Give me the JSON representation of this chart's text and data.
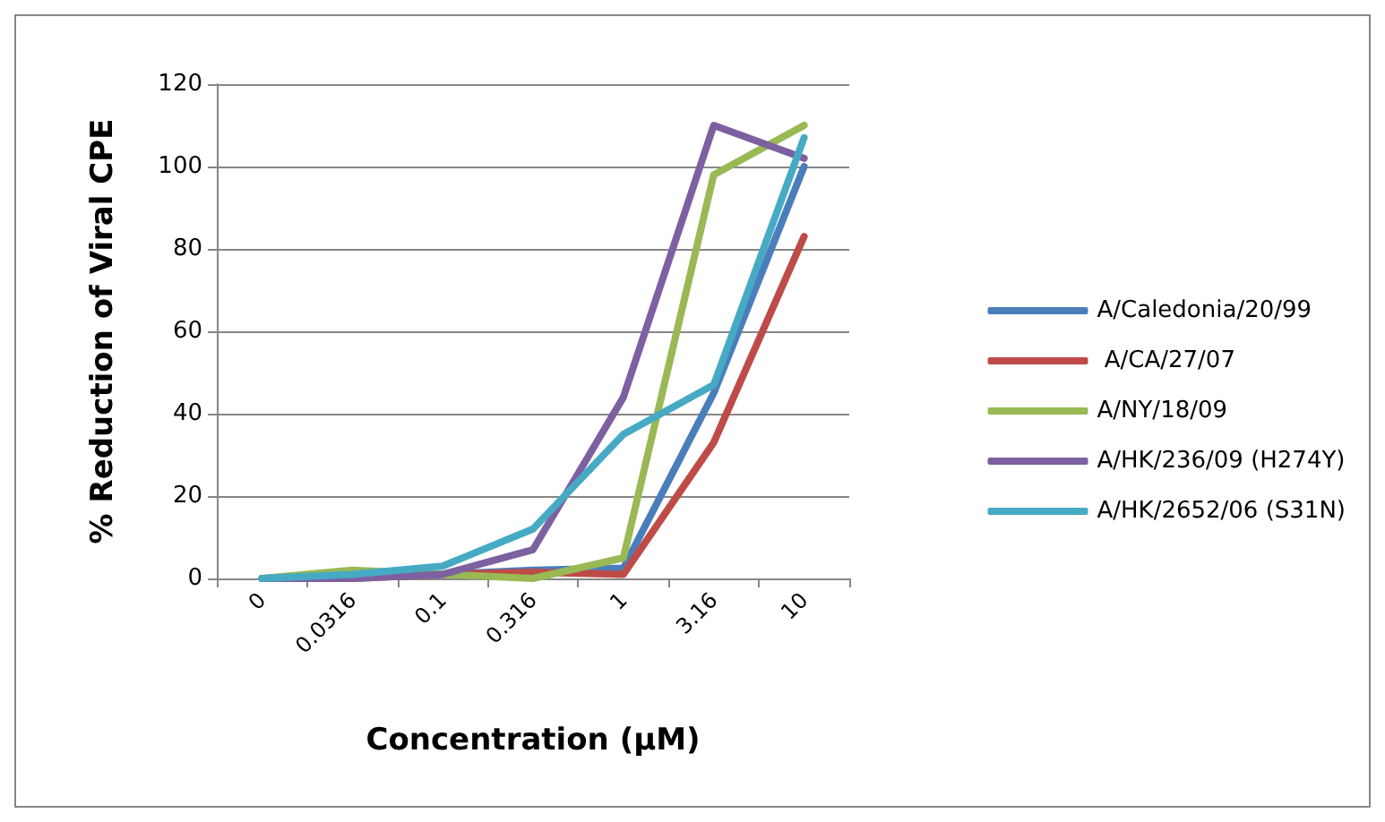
{
  "chart_data": {
    "type": "line",
    "xlabel": "Concentration (µM)",
    "ylabel": "% Reduction of Viral CPE",
    "categories": [
      "0",
      "0.0316",
      "0.1",
      "0.316",
      "1",
      "3.16",
      "10"
    ],
    "ylim": [
      0,
      120
    ],
    "yticks": [
      0,
      20,
      40,
      60,
      80,
      100,
      120
    ],
    "grid": "y",
    "legend": "right",
    "marker": "none",
    "line_style": "solid",
    "series": [
      {
        "name": "A/Caledonia/20/99",
        "color": "#4a7ebb",
        "values": [
          0,
          0.5,
          1,
          2,
          2.5,
          45,
          100
        ]
      },
      {
        "name": " A/CA/27/07",
        "color": "#be4b48",
        "values": [
          0,
          0,
          1,
          1.5,
          1,
          33,
          83
        ]
      },
      {
        "name": "A/NY/18/09",
        "color": "#98b954",
        "values": [
          0,
          2,
          1,
          0,
          5,
          98,
          110
        ]
      },
      {
        "name": "A/HK/236/09 (H274Y)",
        "color": "#7d60a0",
        "values": [
          0,
          0,
          1,
          7,
          44,
          110,
          102
        ]
      },
      {
        "name": "A/HK/2652/06 (S31N)",
        "color": "#46aac5",
        "values": [
          0,
          1,
          3,
          12,
          35,
          47,
          107
        ]
      }
    ]
  }
}
